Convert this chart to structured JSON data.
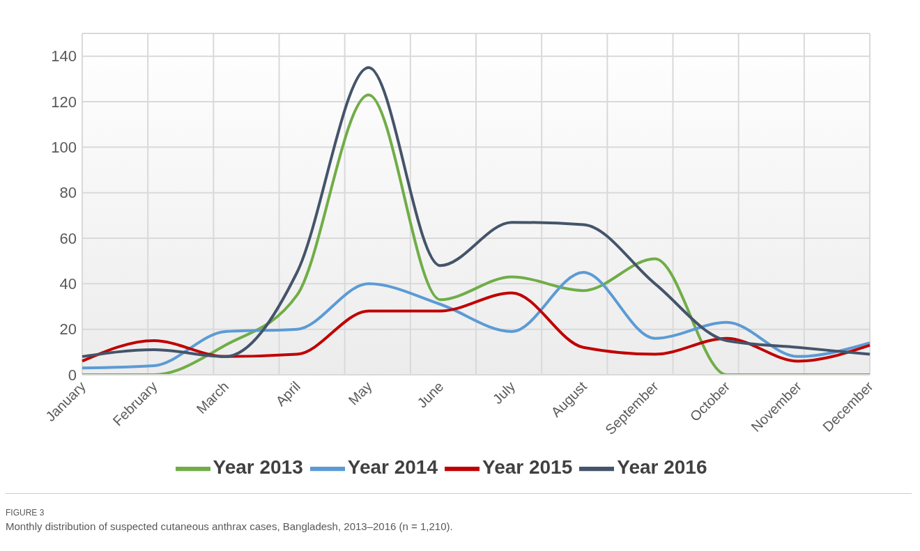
{
  "chart_data": {
    "type": "line",
    "categories": [
      "January",
      "February",
      "March",
      "April",
      "May",
      "June",
      "July",
      "August",
      "September",
      "October",
      "November",
      "December"
    ],
    "series": [
      {
        "name": "Year 2013",
        "color": "#70ad47",
        "values": [
          0,
          0,
          13,
          35,
          123,
          33,
          43,
          37,
          51,
          0,
          0,
          0
        ]
      },
      {
        "name": "Year 2014",
        "color": "#5b9bd5",
        "values": [
          3,
          4,
          19,
          20,
          40,
          31,
          19,
          45,
          16,
          23,
          8,
          14
        ]
      },
      {
        "name": "Year 2015",
        "color": "#c00000",
        "values": [
          6,
          15,
          8,
          9,
          28,
          28,
          36,
          12,
          9,
          16,
          6,
          13
        ]
      },
      {
        "name": "Year 2016",
        "color": "#44546a",
        "values": [
          8,
          11,
          8,
          45,
          135,
          48,
          67,
          66,
          40,
          15,
          12,
          9
        ]
      }
    ],
    "ylim": [
      0,
      150
    ],
    "yticks": [
      0,
      20,
      40,
      60,
      80,
      100,
      120,
      140
    ],
    "grid": true,
    "legend": "bottom",
    "marker": "none",
    "line_style": "solid",
    "annotations": [
      "FIGURE 3",
      "Monthly distribution of suspected cutaneous anthrax cases, Bangladesh, 2013–2016 (n = 1,210)."
    ]
  }
}
